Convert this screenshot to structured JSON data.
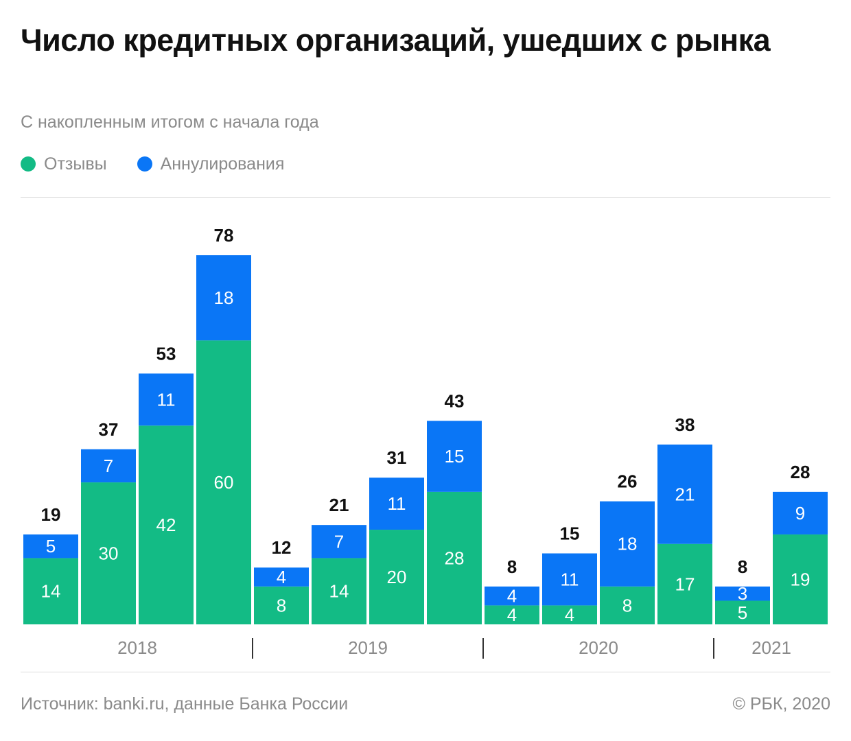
{
  "header": {
    "title": "Число кредитных организаций, ушедших с рынка",
    "subtitle": "С накопленным итогом с начала года"
  },
  "legend": [
    {
      "label": "Отзывы",
      "color": "#13bb85"
    },
    {
      "label": "Аннулирования",
      "color": "#0a76f6"
    }
  ],
  "footer": {
    "source": "Источник: banki.ru, данные Банка России",
    "copyright": "© РБК, 2020"
  },
  "chart_data": {
    "type": "bar",
    "stacked": true,
    "groups": [
      {
        "year": "2018",
        "count": 4
      },
      {
        "year": "2019",
        "count": 4
      },
      {
        "year": "2020",
        "count": 4
      },
      {
        "year": "2021",
        "count": 2
      }
    ],
    "series": [
      {
        "name": "Отзывы",
        "color": "#13bb85",
        "values": [
          14,
          30,
          42,
          60,
          8,
          14,
          20,
          28,
          4,
          4,
          8,
          17,
          5,
          19
        ]
      },
      {
        "name": "Аннулирования",
        "color": "#0a76f6",
        "values": [
          5,
          7,
          11,
          18,
          4,
          7,
          11,
          15,
          4,
          11,
          18,
          21,
          3,
          9
        ]
      }
    ],
    "totals": [
      19,
      37,
      53,
      78,
      12,
      21,
      31,
      43,
      8,
      15,
      26,
      38,
      8,
      28
    ],
    "ylim": [
      0,
      80
    ],
    "grid": false,
    "legend_position": "top-left"
  }
}
